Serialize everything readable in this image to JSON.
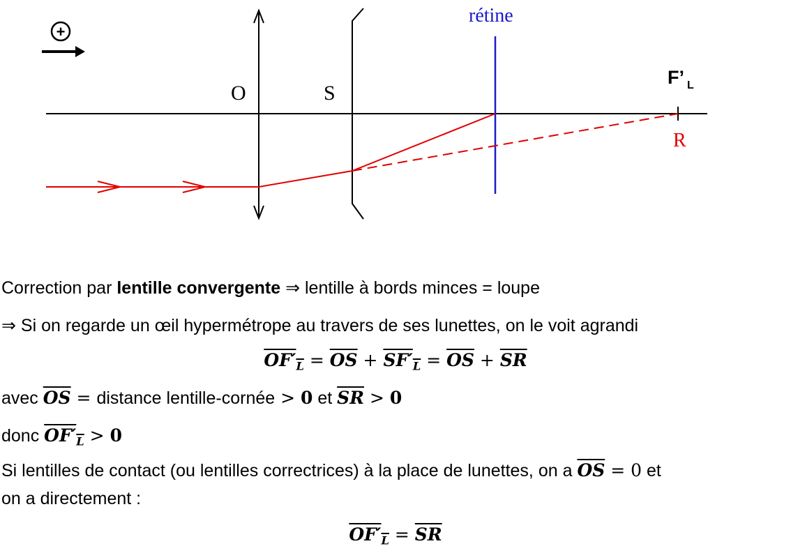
{
  "diagram": {
    "plus_label": "+",
    "label_O": "O",
    "label_S": "S",
    "label_retine": "rétine",
    "label_F_main": "F’",
    "label_F_sub": "L",
    "label_R": "R",
    "colors": {
      "ray": "#e00000",
      "retina": "#1a1acc",
      "axis": "#000000"
    }
  },
  "text": {
    "l1_a": "Correction par ",
    "l1_bold": "lentille convergente",
    "l1_b": " ⇒ lentille à bords minces = loupe",
    "l2": "⇒ Si on regarde un œil hypermétrope au travers de ses lunettes, on le voit agrandi",
    "eq1": {
      "t1": "OF′",
      "t1_sub": "L",
      "eq": " = ",
      "t2": "OS",
      "plus1": " + ",
      "t3": "SF′",
      "t3_sub": "L",
      "eq2": " = ",
      "t4": "OS",
      "plus2": " + ",
      "t5": "SR"
    },
    "l4": {
      "a": "avec ",
      "os": "OS",
      "b": " = ",
      "c": "distance lentille-cornée",
      "d": " > ",
      "zero1": "0",
      "e": " et ",
      "sr": "SR",
      "f": " > ",
      "zero2": "0"
    },
    "l5": {
      "a": "donc ",
      "of": "OF′",
      "of_sub": "L",
      "b": " > ",
      "zero": "0"
    },
    "l6": {
      "a": "Si lentilles de contact (ou lentilles correctrices) à la place de lunettes, on a ",
      "os": "OS",
      "b": " = ",
      "zero": "0",
      "c": " et"
    },
    "l7": "on a directement :",
    "eq2": {
      "t1": "OF′",
      "t1_sub": "L",
      "eq": " = ",
      "t2": "SR"
    }
  }
}
